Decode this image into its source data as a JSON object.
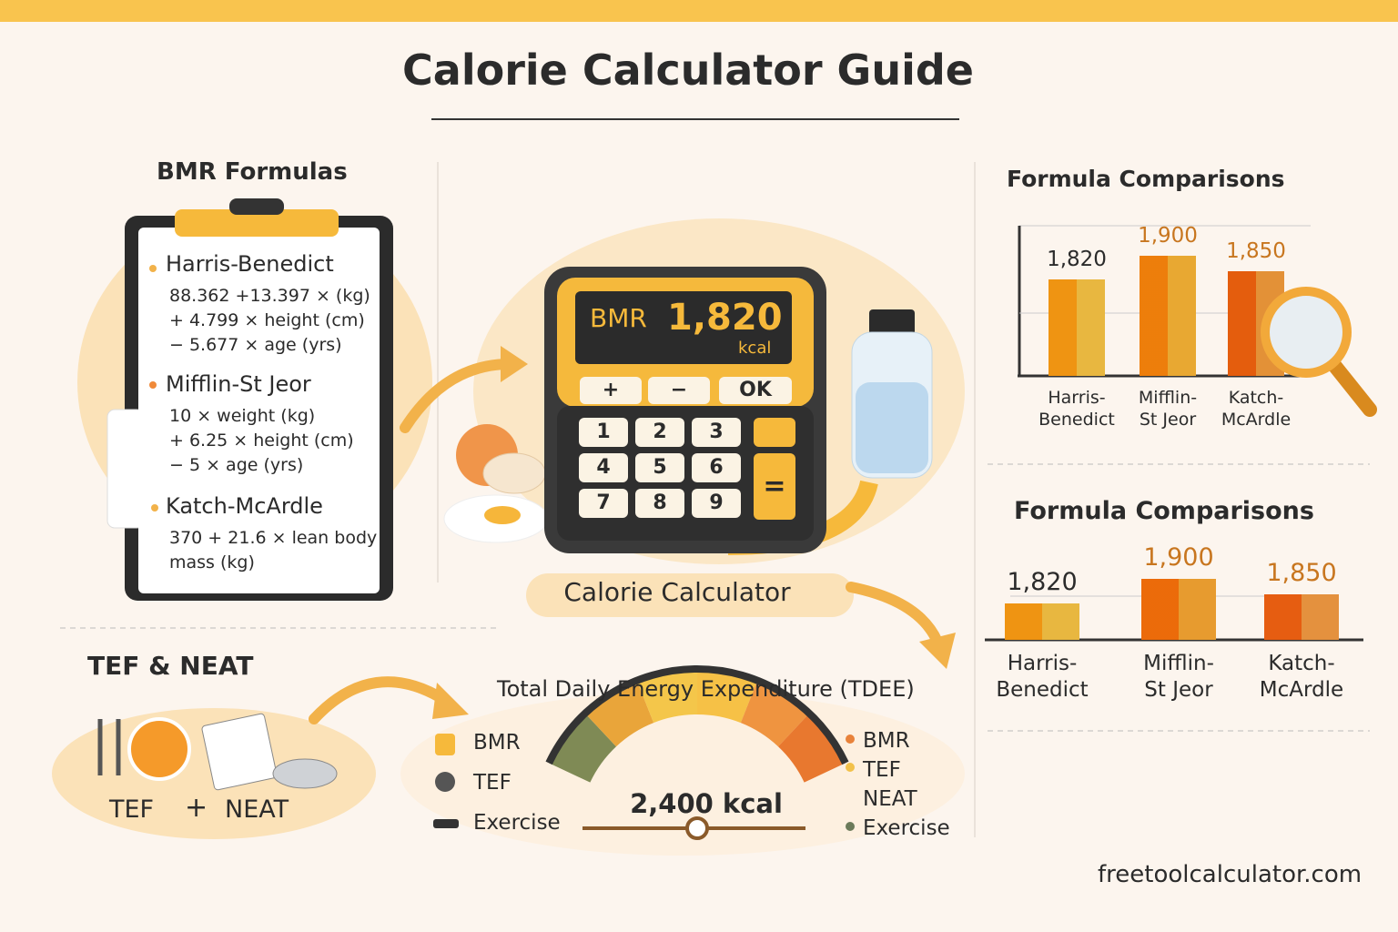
{
  "title": "Calorie Calculator Guide",
  "bmr_formulas": {
    "heading": "BMR Formulas",
    "formulas": [
      {
        "name": "Harris-Benedict",
        "lines": [
          "88.362 +13.397 × (kg)",
          "+ 4.799 × height (cm)",
          "− 5.677 × age (yrs)"
        ]
      },
      {
        "name": "Mifflin-St Jeor",
        "lines": [
          "10 × weight (kg)",
          "+ 6.25 × height (cm)",
          "− 5 × age (yrs)"
        ]
      },
      {
        "name": "Katch-McArdle",
        "lines": [
          "370 + 21.6 × lean body",
          "mass (kg)"
        ]
      }
    ]
  },
  "calculator": {
    "display_label": "BMR",
    "display_value": "1,820",
    "display_unit": "kcal",
    "top_keys": [
      "+",
      "−",
      "OK"
    ],
    "number_keys": [
      "1",
      "2",
      "3",
      "4",
      "5",
      "6",
      "7",
      "8",
      "9"
    ],
    "equals_key": "=",
    "caption": "Calorie Calculator"
  },
  "tef_neat": {
    "heading": "TEF & NEAT",
    "left": "TEF",
    "operator": "+",
    "right": "NEAT"
  },
  "tdee": {
    "heading": "Total Daily Energy Expenditure (TDEE)",
    "total": "2,400 kcal",
    "left_legend": [
      "BMR",
      "TEF",
      "Exercise"
    ],
    "right_legend": [
      "BMR",
      "TEF",
      "NEAT",
      "Exercise"
    ]
  },
  "chart_data": [
    {
      "type": "bar",
      "title": "Formula Comparisons",
      "categories": [
        "Harris-\nBenedict",
        "Mifflin-\nSt Jeor",
        "Katch-\nMcArdle"
      ],
      "values": [
        1820,
        1900,
        1850
      ],
      "value_labels": [
        "1,820",
        "1,900",
        "1,850"
      ],
      "colors": [
        "#f7c244",
        "#f6b335",
        "#f19a3a"
      ],
      "ylim": [
        1500,
        2000
      ]
    },
    {
      "type": "bar",
      "title": "Formula Comparisons",
      "categories": [
        "Harris-\nBenedict",
        "Mifflin-\nSt Jeor",
        "Katch-\nMcArdle"
      ],
      "values": [
        1820,
        1900,
        1850
      ],
      "value_labels": [
        "1,820",
        "1,900",
        "1,850"
      ],
      "colors": [
        "#f7c244",
        "#f5a532",
        "#f29a42"
      ],
      "ylim": [
        1700,
        2000
      ]
    }
  ],
  "footer": "freetoolcalculator.com"
}
